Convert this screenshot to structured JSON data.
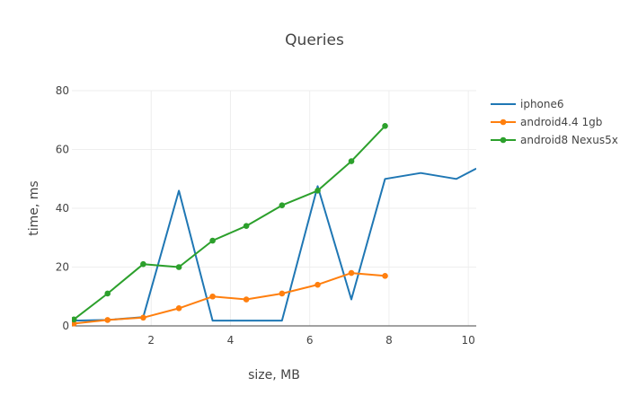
{
  "chart_data": {
    "type": "line",
    "title": "Queries",
    "xlabel": "size, MB",
    "ylabel": "time, ms",
    "xlim": [
      0,
      10.2
    ],
    "ylim": [
      0,
      80
    ],
    "x_ticks": [
      2,
      4,
      6,
      8,
      10
    ],
    "y_ticks": [
      0,
      20,
      40,
      60,
      80
    ],
    "grid": true,
    "legend_position": "right",
    "series": [
      {
        "name": "iphone6",
        "color": "#1f77b4",
        "markers": false,
        "points": [
          [
            0.05,
            1.8
          ],
          [
            0.9,
            2.0
          ],
          [
            1.8,
            3.0
          ],
          [
            2.7,
            46.0
          ],
          [
            3.55,
            1.8
          ],
          [
            4.4,
            1.8
          ],
          [
            5.3,
            1.8
          ],
          [
            6.2,
            47.5
          ],
          [
            7.05,
            9.0
          ],
          [
            7.9,
            50.0
          ],
          [
            8.8,
            52.0
          ],
          [
            9.7,
            50.0
          ],
          [
            10.2,
            53.5
          ]
        ]
      },
      {
        "name": "android4.4 1gb",
        "color": "#ff7f0e",
        "markers": true,
        "points": [
          [
            0.05,
            0.8
          ],
          [
            0.9,
            2.0
          ],
          [
            1.8,
            2.8
          ],
          [
            2.7,
            6.0
          ],
          [
            3.55,
            10.0
          ],
          [
            4.4,
            9.0
          ],
          [
            5.3,
            11.0
          ],
          [
            6.2,
            14.0
          ],
          [
            7.05,
            18.0
          ],
          [
            7.9,
            17.0
          ]
        ]
      },
      {
        "name": "android8 Nexus5x",
        "color": "#2ca02c",
        "markers": true,
        "points": [
          [
            0.05,
            2.2
          ],
          [
            0.9,
            11.0
          ],
          [
            1.8,
            21.0
          ],
          [
            2.7,
            20.0
          ],
          [
            3.55,
            29.0
          ],
          [
            4.4,
            34.0
          ],
          [
            5.3,
            41.0
          ],
          [
            6.2,
            46.0
          ],
          [
            7.05,
            56.0
          ],
          [
            7.9,
            68.0
          ]
        ]
      }
    ]
  }
}
